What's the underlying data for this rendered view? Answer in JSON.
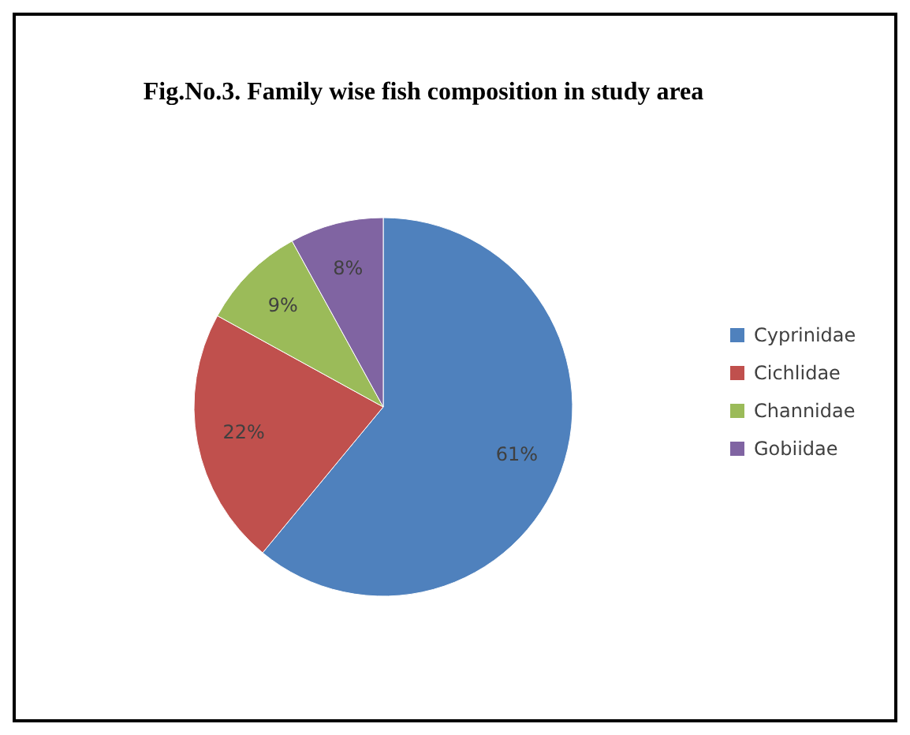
{
  "chart_data": {
    "type": "pie",
    "title": "Fig.No.3. Family wise fish composition in study area",
    "categories": [
      "Cyprinidae",
      "Cichlidae",
      "Channidae",
      "Gobiidae"
    ],
    "values": [
      61,
      22,
      9,
      8
    ],
    "colors": [
      "#4f81bd",
      "#c0504d",
      "#9bbb59",
      "#8064a2"
    ],
    "value_labels": [
      "61%",
      "22%",
      "9%",
      "8%"
    ],
    "legend": "right"
  }
}
